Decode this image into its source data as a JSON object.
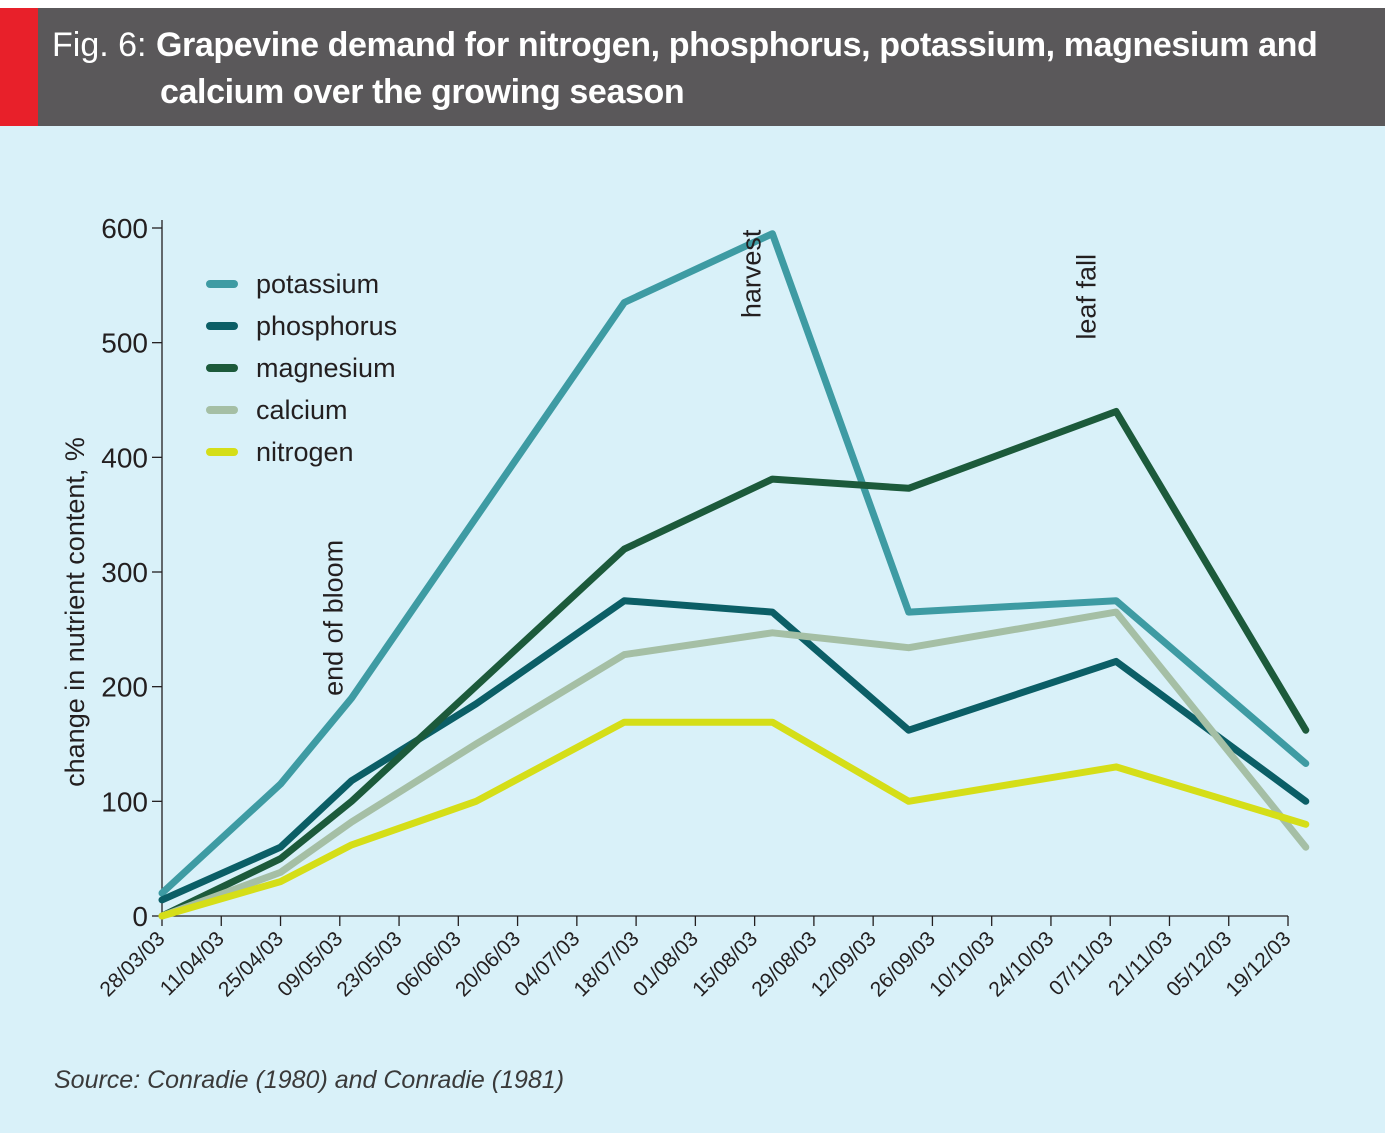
{
  "header": {
    "fig_label": "Fig. 6:",
    "title_line1": "Grapevine demand for nitrogen, phosphorus, potassium, magnesium and",
    "title_line2": "calcium over the growing season",
    "accent_color": "#e8202a",
    "background_color": "#5a585a"
  },
  "source": "Source: Conradie (1980) and Conradie (1981)",
  "chart_data": {
    "type": "line",
    "ylabel": "change in nutrient content, %",
    "xlabel": "",
    "ylim": [
      0,
      600
    ],
    "yticks": [
      0,
      100,
      200,
      300,
      400,
      500,
      600
    ],
    "x_tick_labels": [
      "28/03/03",
      "11/04/03",
      "25/04/03",
      "09/05/03",
      "23/05/03",
      "06/06/03",
      "20/06/03",
      "04/07/03",
      "18/07/03",
      "01/08/03",
      "15/08/03",
      "29/08/03",
      "12/09/03",
      "26/09/03",
      "10/10/03",
      "24/10/03",
      "07/11/03",
      "21/11/03",
      "05/12/03",
      "19/12/03"
    ],
    "x_tick_positions": [
      0,
      1,
      2,
      3,
      4,
      5,
      6,
      7,
      8,
      9,
      10,
      11,
      12,
      13,
      14,
      15,
      16,
      17,
      18,
      19
    ],
    "xlim": [
      0,
      19
    ],
    "grid": false,
    "legend_position": "top-left",
    "background_color": "#d9f1f9",
    "series": [
      {
        "name": "potassium",
        "color": "#3e9ba3",
        "x": [
          0,
          2,
          3.2,
          7.8,
          10.3,
          12.6,
          16.1,
          19.3
        ],
        "y": [
          20,
          115,
          190,
          535,
          595,
          265,
          275,
          133
        ]
      },
      {
        "name": "phosphorus",
        "color": "#0b5e66",
        "x": [
          0,
          2,
          3.2,
          5.3,
          7.8,
          10.3,
          12.6,
          16.1,
          19.3
        ],
        "y": [
          14,
          60,
          118,
          185,
          275,
          265,
          162,
          222,
          100
        ]
      },
      {
        "name": "magnesium",
        "color": "#1c5a3b",
        "x": [
          0,
          2,
          3.2,
          7.8,
          10.3,
          12.6,
          16.1,
          19.3
        ],
        "y": [
          0,
          50,
          100,
          320,
          381,
          373,
          440,
          162
        ]
      },
      {
        "name": "calcium",
        "color": "#a5bfa5",
        "x": [
          0,
          2,
          3.2,
          5.3,
          7.8,
          10.3,
          12.6,
          16.1,
          19.3
        ],
        "y": [
          0,
          38,
          82,
          150,
          228,
          247,
          234,
          265,
          60
        ]
      },
      {
        "name": "nitrogen",
        "color": "#d5de18",
        "x": [
          0,
          2,
          3.2,
          5.3,
          7.8,
          10.3,
          12.6,
          16.1,
          19.3
        ],
        "y": [
          0,
          30,
          62,
          100,
          169,
          169,
          100,
          130,
          80
        ]
      }
    ],
    "annotations": [
      {
        "text": "end of bloom",
        "x": 3.05,
        "y": 260
      },
      {
        "text": "harvest",
        "x": 10.1,
        "y": 560
      },
      {
        "text": "leaf fall",
        "x": 15.75,
        "y": 540
      }
    ]
  }
}
